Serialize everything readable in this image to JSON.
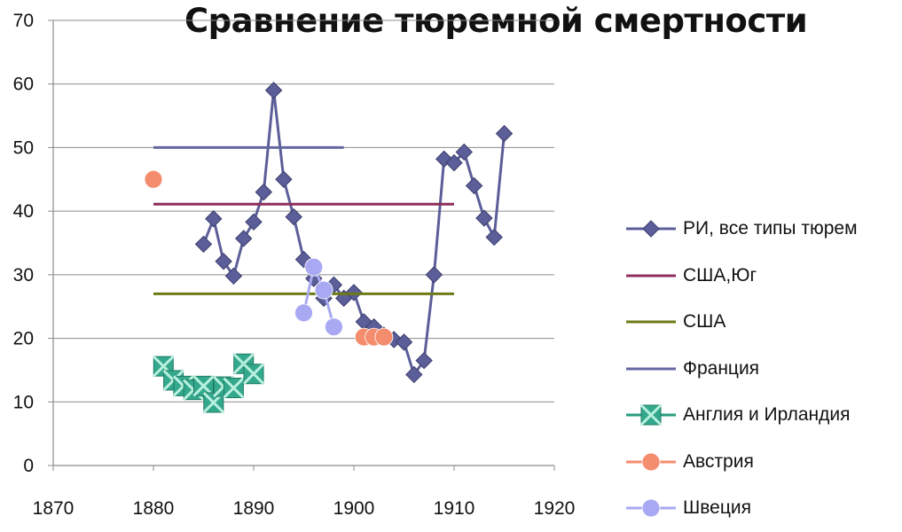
{
  "chart_data": {
    "type": "line",
    "title": "Сравнение тюремной смертности",
    "xlabel": "",
    "ylabel": "",
    "xlim": [
      1870,
      1920
    ],
    "ylim": [
      0,
      70
    ],
    "x_ticks": [
      "1870",
      "1880",
      "1890",
      "1900",
      "1910",
      "1920"
    ],
    "y_ticks": [
      "0",
      "10",
      "20",
      "30",
      "40",
      "50",
      "60",
      "70"
    ],
    "grid": "horizontal",
    "legend_position": "right",
    "series": [
      {
        "name": "РИ, все типы тюрем",
        "color": "#5b5e98",
        "marker": "diamond",
        "line": true,
        "points": [
          [
            1885,
            34.8
          ],
          [
            1886,
            38.8
          ],
          [
            1887,
            32.1
          ],
          [
            1888,
            29.8
          ],
          [
            1889,
            35.7
          ],
          [
            1890,
            38.3
          ],
          [
            1891,
            43.0
          ],
          [
            1892,
            59.0
          ],
          [
            1893,
            45.0
          ],
          [
            1894,
            39.1
          ],
          [
            1895,
            32.4
          ],
          [
            1896,
            29.4
          ],
          [
            1897,
            26.3
          ],
          [
            1898,
            28.4
          ],
          [
            1899,
            26.3
          ],
          [
            1900,
            27.2
          ],
          [
            1901,
            22.6
          ],
          [
            1902,
            21.8
          ],
          [
            1903,
            20.5
          ],
          [
            1904,
            19.8
          ],
          [
            1905,
            19.4
          ],
          [
            1906,
            14.3
          ],
          [
            1907,
            16.5
          ],
          [
            1908,
            30.0
          ],
          [
            1909,
            48.2
          ],
          [
            1910,
            47.6
          ],
          [
            1911,
            49.3
          ],
          [
            1912,
            44.0
          ],
          [
            1913,
            38.9
          ],
          [
            1914,
            35.9
          ],
          [
            1915,
            52.2
          ]
        ]
      },
      {
        "name": "США,Юг",
        "color": "#8e2f5c",
        "marker": "none",
        "line": true,
        "points": [
          [
            1880,
            41.1
          ],
          [
            1910,
            41.1
          ]
        ]
      },
      {
        "name": "США",
        "color": "#6e7a16",
        "marker": "none",
        "line": true,
        "points": [
          [
            1880,
            27.0
          ],
          [
            1910,
            27.0
          ]
        ]
      },
      {
        "name": "Франция",
        "color": "#6466a2",
        "marker": "none",
        "line": true,
        "points": [
          [
            1880,
            50.0
          ],
          [
            1899,
            50.0
          ]
        ]
      },
      {
        "name": "Англия и Ирландия",
        "color": "#2a9d7e",
        "marker": "x-square",
        "line": false,
        "points": [
          [
            1881,
            15.6
          ],
          [
            1882,
            13.4
          ],
          [
            1883,
            12.5
          ],
          [
            1884,
            11.9
          ],
          [
            1885,
            12.5
          ],
          [
            1886,
            9.9
          ],
          [
            1887,
            12.4
          ],
          [
            1888,
            12.2
          ],
          [
            1889,
            16.0
          ],
          [
            1890,
            14.4
          ]
        ]
      },
      {
        "name": "Австрия",
        "color": "#f48c6e",
        "marker": "circle",
        "line": false,
        "points": [
          [
            1880,
            45.0
          ],
          [
            1901,
            20.2
          ],
          [
            1902,
            20.2
          ],
          [
            1903,
            20.2
          ]
        ]
      },
      {
        "name": "Швеция",
        "color": "#a8a9f2",
        "marker": "circle",
        "line": true,
        "points": [
          [
            1895,
            24.0
          ],
          [
            1896,
            31.2
          ],
          [
            1897,
            27.6
          ],
          [
            1898,
            21.8
          ]
        ]
      }
    ]
  }
}
